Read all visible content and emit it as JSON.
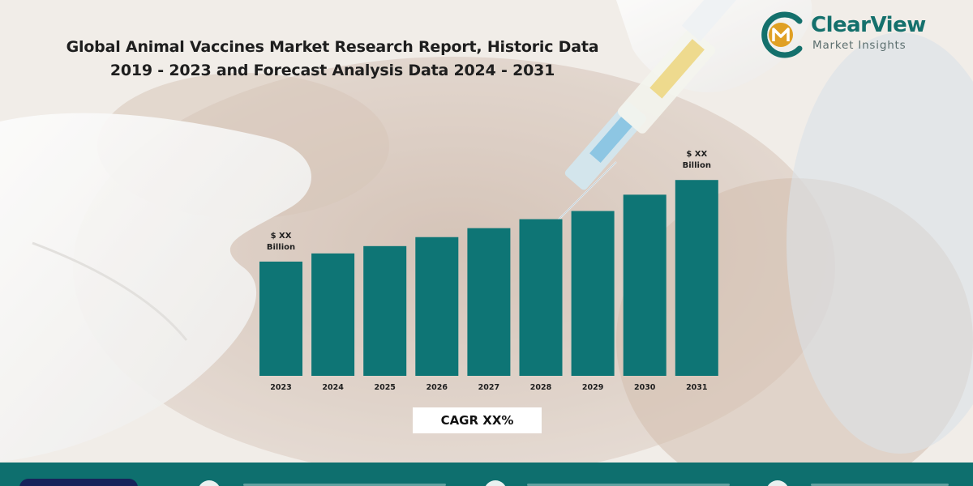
{
  "title": {
    "line1": "Global Animal Vaccines Market Research Report, Historic Data",
    "line2": "2019 - 2023 and Forecast Analysis Data 2024 - 2031"
  },
  "brand": {
    "name": "ClearView",
    "tagline": "Market Insights",
    "colors": {
      "primary": "#14706c",
      "accent": "#e0a024",
      "bar": "#0e7575",
      "footer": "#0e6f6e"
    }
  },
  "chart_data": {
    "type": "bar",
    "categories": [
      "2023",
      "2024",
      "2025",
      "2026",
      "2027",
      "2028",
      "2029",
      "2030",
      "2031"
    ],
    "values": [
      140,
      150,
      159,
      170,
      181,
      192,
      202,
      222,
      240
    ],
    "ylim": [
      0,
      270
    ],
    "grid": false,
    "legend": "none",
    "annotations": [
      {
        "category": "2023",
        "line1": "$ XX",
        "line2": "Billion"
      },
      {
        "category": "2031",
        "line1": "$ XX",
        "line2": "Billion"
      }
    ],
    "title": "",
    "xlabel": "",
    "ylabel": ""
  },
  "cagr": {
    "label": "CAGR XX%"
  },
  "icons": [
    "logo-mark-icon",
    "syringe-image",
    "globe-icon",
    "mail-icon",
    "phone-icon"
  ]
}
